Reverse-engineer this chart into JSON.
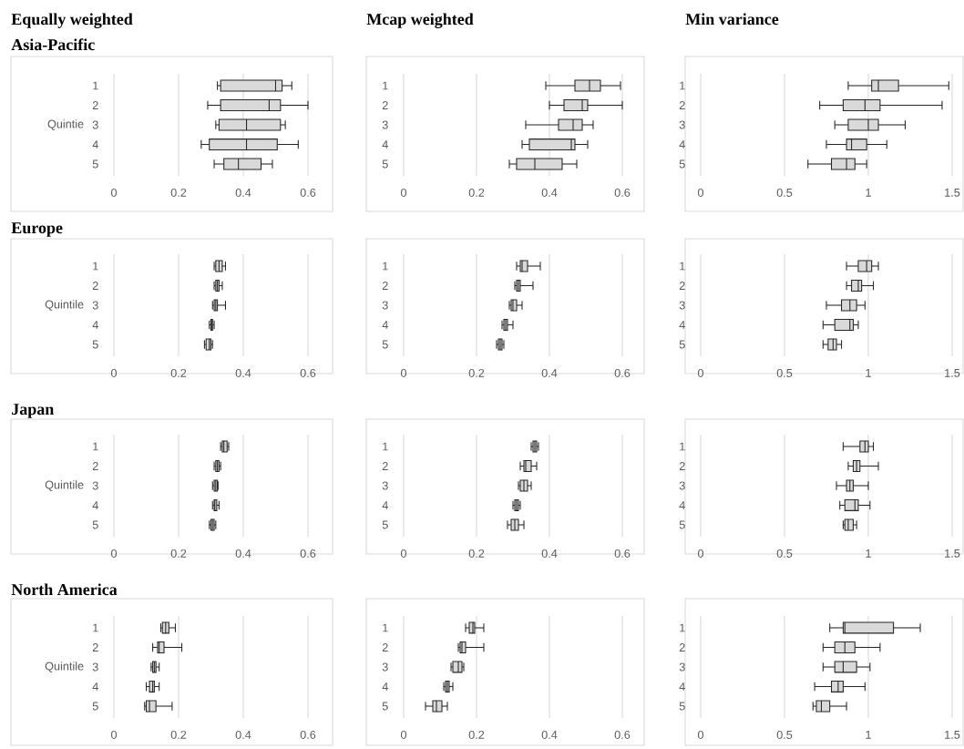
{
  "chart_data": [
    {
      "type": "box",
      "orientation": "horizontal",
      "title": "Equally weighted",
      "subtitle": "Asia-Pacific",
      "ylabel": "Quintie",
      "categories": [
        "1",
        "2",
        "3",
        "4",
        "5"
      ],
      "xlim": [
        0,
        0.6
      ],
      "xticks": [
        0,
        0.2,
        0.4,
        0.6
      ],
      "grid": "x",
      "boxes": [
        {
          "low": 0.32,
          "q1": 0.33,
          "median": 0.5,
          "q3": 0.52,
          "high": 0.55
        },
        {
          "low": 0.29,
          "q1": 0.33,
          "median": 0.48,
          "q3": 0.515,
          "high": 0.6
        },
        {
          "low": 0.315,
          "q1": 0.325,
          "median": 0.41,
          "q3": 0.515,
          "high": 0.53
        },
        {
          "low": 0.27,
          "q1": 0.295,
          "median": 0.41,
          "q3": 0.505,
          "high": 0.57
        },
        {
          "low": 0.31,
          "q1": 0.34,
          "median": 0.385,
          "q3": 0.455,
          "high": 0.49
        }
      ]
    },
    {
      "type": "box",
      "orientation": "horizontal",
      "title": "Mcap weighted",
      "categories": [
        "1",
        "2",
        "3",
        "4",
        "5"
      ],
      "xlim": [
        0,
        0.6
      ],
      "xticks": [
        0,
        0.2,
        0.4,
        0.6
      ],
      "grid": "x",
      "boxes": [
        {
          "low": 0.39,
          "q1": 0.47,
          "median": 0.51,
          "q3": 0.54,
          "high": 0.595
        },
        {
          "low": 0.4,
          "q1": 0.44,
          "median": 0.49,
          "q3": 0.505,
          "high": 0.6
        },
        {
          "low": 0.335,
          "q1": 0.425,
          "median": 0.465,
          "q3": 0.49,
          "high": 0.52
        },
        {
          "low": 0.325,
          "q1": 0.345,
          "median": 0.46,
          "q3": 0.47,
          "high": 0.505
        },
        {
          "low": 0.29,
          "q1": 0.31,
          "median": 0.36,
          "q3": 0.435,
          "high": 0.475
        }
      ]
    },
    {
      "type": "box",
      "orientation": "horizontal",
      "title": "Min variance",
      "categories": [
        "1",
        "2",
        "3",
        "4",
        "5"
      ],
      "xlim": [
        0,
        1.5
      ],
      "xticks": [
        0,
        0.5,
        1,
        1.5
      ],
      "grid": "x",
      "boxes": [
        {
          "low": 0.88,
          "q1": 1.02,
          "median": 1.06,
          "q3": 1.18,
          "high": 1.48
        },
        {
          "low": 0.71,
          "q1": 0.85,
          "median": 0.98,
          "q3": 1.07,
          "high": 1.44
        },
        {
          "low": 0.8,
          "q1": 0.88,
          "median": 1.0,
          "q3": 1.06,
          "high": 1.22
        },
        {
          "low": 0.75,
          "q1": 0.87,
          "median": 0.9,
          "q3": 0.99,
          "high": 1.11
        },
        {
          "low": 0.64,
          "q1": 0.78,
          "median": 0.87,
          "q3": 0.92,
          "high": 0.99
        }
      ]
    },
    {
      "type": "box",
      "orientation": "horizontal",
      "subtitle": "Europe",
      "ylabel": "Quintile",
      "categories": [
        "1",
        "2",
        "3",
        "4",
        "5"
      ],
      "xlim": [
        0,
        0.6
      ],
      "xticks": [
        0,
        0.2,
        0.4,
        0.6
      ],
      "grid": "x",
      "boxes": [
        {
          "low": 0.31,
          "q1": 0.315,
          "median": 0.325,
          "q3": 0.335,
          "high": 0.345
        },
        {
          "low": 0.31,
          "q1": 0.315,
          "median": 0.32,
          "q3": 0.325,
          "high": 0.335
        },
        {
          "low": 0.305,
          "q1": 0.31,
          "median": 0.315,
          "q3": 0.32,
          "high": 0.345
        },
        {
          "low": 0.295,
          "q1": 0.3,
          "median": 0.302,
          "q3": 0.305,
          "high": 0.31
        },
        {
          "low": 0.28,
          "q1": 0.285,
          "median": 0.295,
          "q3": 0.3,
          "high": 0.305
        }
      ]
    },
    {
      "type": "box",
      "orientation": "horizontal",
      "categories": [
        "1",
        "2",
        "3",
        "4",
        "5"
      ],
      "xlim": [
        0,
        0.6
      ],
      "xticks": [
        0,
        0.2,
        0.4,
        0.6
      ],
      "grid": "x",
      "boxes": [
        {
          "low": 0.31,
          "q1": 0.32,
          "median": 0.325,
          "q3": 0.34,
          "high": 0.375
        },
        {
          "low": 0.305,
          "q1": 0.31,
          "median": 0.315,
          "q3": 0.32,
          "high": 0.355
        },
        {
          "low": 0.29,
          "q1": 0.295,
          "median": 0.3,
          "q3": 0.31,
          "high": 0.325
        },
        {
          "low": 0.27,
          "q1": 0.275,
          "median": 0.28,
          "q3": 0.285,
          "high": 0.3
        },
        {
          "low": 0.255,
          "q1": 0.26,
          "median": 0.265,
          "q3": 0.27,
          "high": 0.275
        }
      ]
    },
    {
      "type": "box",
      "orientation": "horizontal",
      "categories": [
        "1",
        "2",
        "3",
        "4",
        "5"
      ],
      "xlim": [
        0,
        1.5
      ],
      "xticks": [
        0,
        0.5,
        1,
        1.5
      ],
      "grid": "x",
      "boxes": [
        {
          "low": 0.87,
          "q1": 0.94,
          "median": 0.99,
          "q3": 1.02,
          "high": 1.06
        },
        {
          "low": 0.87,
          "q1": 0.9,
          "median": 0.94,
          "q3": 0.96,
          "high": 1.03
        },
        {
          "low": 0.75,
          "q1": 0.84,
          "median": 0.89,
          "q3": 0.93,
          "high": 0.98
        },
        {
          "low": 0.73,
          "q1": 0.8,
          "median": 0.89,
          "q3": 0.91,
          "high": 0.94
        },
        {
          "low": 0.73,
          "q1": 0.76,
          "median": 0.79,
          "q3": 0.81,
          "high": 0.84
        }
      ]
    },
    {
      "type": "box",
      "orientation": "horizontal",
      "subtitle": "Japan",
      "ylabel": "Quintile",
      "categories": [
        "1",
        "2",
        "3",
        "4",
        "5"
      ],
      "xlim": [
        0,
        0.6
      ],
      "xticks": [
        0,
        0.2,
        0.4,
        0.6
      ],
      "grid": "x",
      "boxes": [
        {
          "low": 0.33,
          "q1": 0.335,
          "median": 0.34,
          "q3": 0.35,
          "high": 0.355
        },
        {
          "low": 0.31,
          "q1": 0.315,
          "median": 0.32,
          "q3": 0.325,
          "high": 0.33
        },
        {
          "low": 0.305,
          "q1": 0.31,
          "median": 0.315,
          "q3": 0.32,
          "high": 0.322
        },
        {
          "low": 0.305,
          "q1": 0.31,
          "median": 0.312,
          "q3": 0.318,
          "high": 0.325
        },
        {
          "low": 0.295,
          "q1": 0.3,
          "median": 0.305,
          "q3": 0.31,
          "high": 0.315
        }
      ]
    },
    {
      "type": "box",
      "orientation": "horizontal",
      "categories": [
        "1",
        "2",
        "3",
        "4",
        "5"
      ],
      "xlim": [
        0,
        0.6
      ],
      "xticks": [
        0,
        0.2,
        0.4,
        0.6
      ],
      "grid": "x",
      "boxes": [
        {
          "low": 0.35,
          "q1": 0.355,
          "median": 0.36,
          "q3": 0.365,
          "high": 0.37
        },
        {
          "low": 0.32,
          "q1": 0.33,
          "median": 0.335,
          "q3": 0.35,
          "high": 0.365
        },
        {
          "low": 0.315,
          "q1": 0.32,
          "median": 0.33,
          "q3": 0.34,
          "high": 0.35
        },
        {
          "low": 0.3,
          "q1": 0.305,
          "median": 0.31,
          "q3": 0.315,
          "high": 0.32
        },
        {
          "low": 0.285,
          "q1": 0.295,
          "median": 0.305,
          "q3": 0.315,
          "high": 0.33
        }
      ]
    },
    {
      "type": "box",
      "orientation": "horizontal",
      "categories": [
        "1",
        "2",
        "3",
        "4",
        "5"
      ],
      "xlim": [
        0,
        1.5
      ],
      "xticks": [
        0,
        0.5,
        1,
        1.5
      ],
      "grid": "x",
      "boxes": [
        {
          "low": 0.85,
          "q1": 0.95,
          "median": 0.98,
          "q3": 1.0,
          "high": 1.03
        },
        {
          "low": 0.88,
          "q1": 0.91,
          "median": 0.93,
          "q3": 0.95,
          "high": 1.06
        },
        {
          "low": 0.81,
          "q1": 0.87,
          "median": 0.89,
          "q3": 0.91,
          "high": 1.0
        },
        {
          "low": 0.83,
          "q1": 0.86,
          "median": 0.92,
          "q3": 0.94,
          "high": 1.01
        },
        {
          "low": 0.85,
          "q1": 0.86,
          "median": 0.88,
          "q3": 0.91,
          "high": 0.93
        }
      ]
    },
    {
      "type": "box",
      "orientation": "horizontal",
      "subtitle": "North America",
      "ylabel": "Quintile",
      "categories": [
        "1",
        "2",
        "3",
        "4",
        "5"
      ],
      "xlim": [
        0,
        0.6
      ],
      "xticks": [
        0,
        0.2,
        0.4,
        0.6
      ],
      "grid": "x",
      "boxes": [
        {
          "low": 0.145,
          "q1": 0.15,
          "median": 0.16,
          "q3": 0.17,
          "high": 0.19
        },
        {
          "low": 0.12,
          "q1": 0.135,
          "median": 0.14,
          "q3": 0.155,
          "high": 0.21
        },
        {
          "low": 0.115,
          "q1": 0.12,
          "median": 0.125,
          "q3": 0.13,
          "high": 0.14
        },
        {
          "low": 0.1,
          "q1": 0.11,
          "median": 0.12,
          "q3": 0.125,
          "high": 0.14
        },
        {
          "low": 0.095,
          "q1": 0.1,
          "median": 0.11,
          "q3": 0.13,
          "high": 0.18
        }
      ]
    },
    {
      "type": "box",
      "orientation": "horizontal",
      "categories": [
        "1",
        "2",
        "3",
        "4",
        "5"
      ],
      "xlim": [
        0,
        0.6
      ],
      "xticks": [
        0,
        0.2,
        0.4,
        0.6
      ],
      "grid": "x",
      "boxes": [
        {
          "low": 0.17,
          "q1": 0.18,
          "median": 0.19,
          "q3": 0.195,
          "high": 0.22
        },
        {
          "low": 0.15,
          "q1": 0.155,
          "median": 0.16,
          "q3": 0.17,
          "high": 0.22
        },
        {
          "low": 0.13,
          "q1": 0.135,
          "median": 0.15,
          "q3": 0.16,
          "high": 0.165
        },
        {
          "low": 0.11,
          "q1": 0.115,
          "median": 0.12,
          "q3": 0.125,
          "high": 0.135
        },
        {
          "low": 0.06,
          "q1": 0.08,
          "median": 0.09,
          "q3": 0.105,
          "high": 0.12
        }
      ]
    },
    {
      "type": "box",
      "orientation": "horizontal",
      "categories": [
        "1",
        "2",
        "3",
        "4",
        "5"
      ],
      "xlim": [
        0,
        1.5
      ],
      "xticks": [
        0,
        0.5,
        1,
        1.5
      ],
      "grid": "x",
      "boxes": [
        {
          "low": 0.77,
          "q1": 0.85,
          "median": 0.86,
          "q3": 1.15,
          "high": 1.31
        },
        {
          "low": 0.73,
          "q1": 0.8,
          "median": 0.86,
          "q3": 0.92,
          "high": 1.07
        },
        {
          "low": 0.73,
          "q1": 0.8,
          "median": 0.85,
          "q3": 0.93,
          "high": 1.01
        },
        {
          "low": 0.68,
          "q1": 0.78,
          "median": 0.82,
          "q3": 0.85,
          "high": 0.98
        },
        {
          "low": 0.67,
          "q1": 0.69,
          "median": 0.72,
          "q3": 0.77,
          "high": 0.87
        }
      ]
    }
  ]
}
